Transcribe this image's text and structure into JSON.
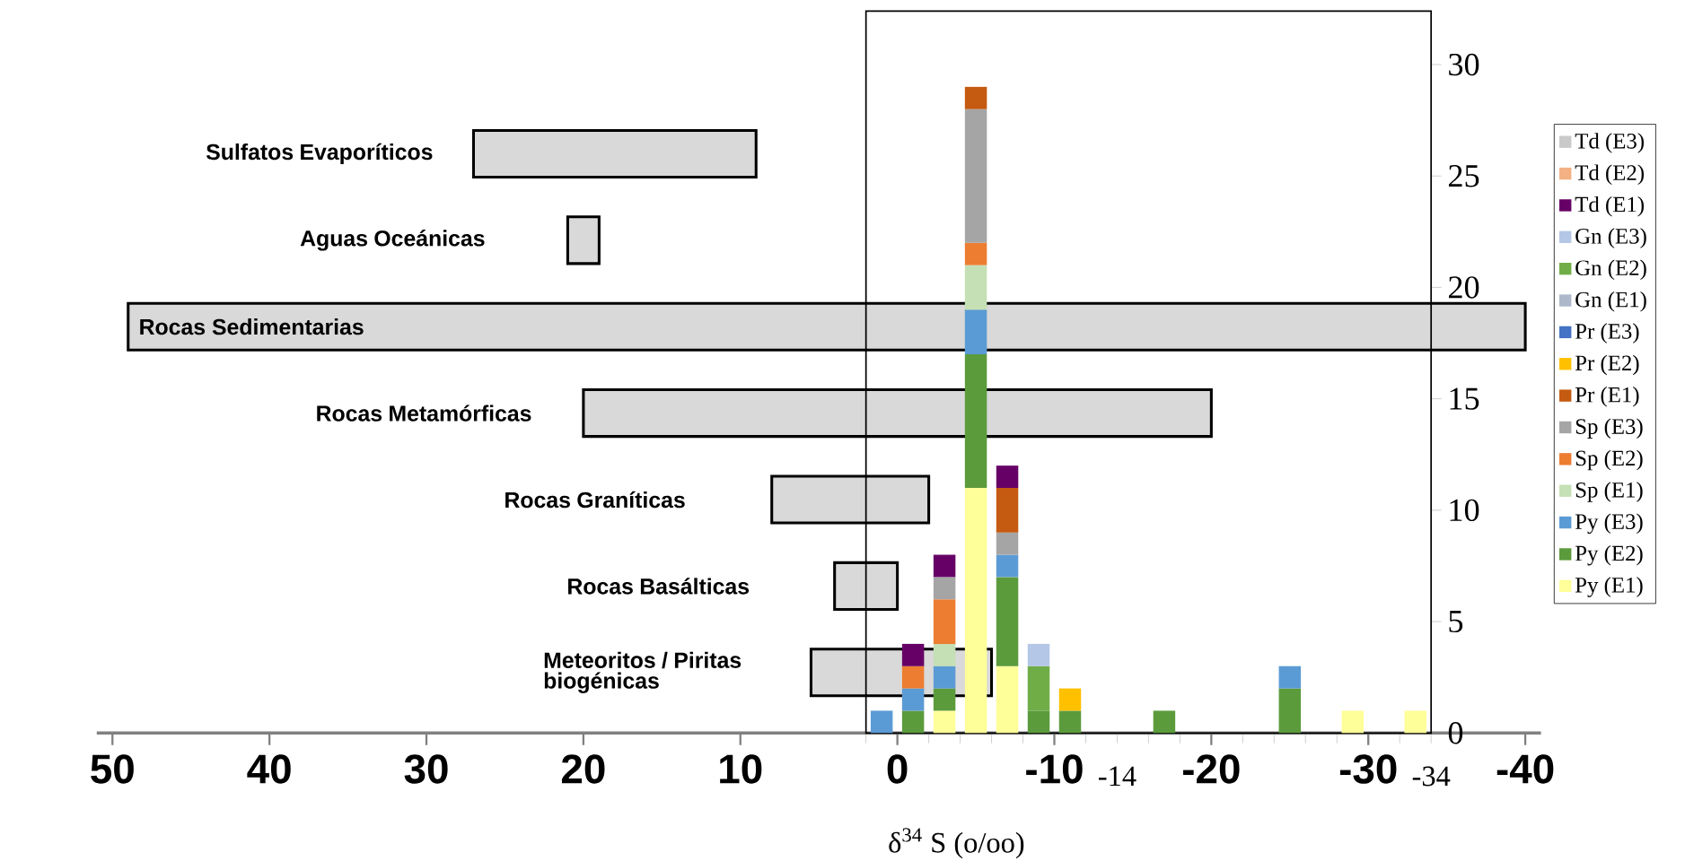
{
  "chart_data": [
    {
      "type": "bar",
      "orientation": "horizontal",
      "color": "#d9d9d9",
      "categories": [
        "Sulfatos Evaporíticos",
        "Aguas Oceánicas",
        "Rocas Sedimentarias",
        "Rocas Metamórficas",
        "Rocas Graníticas",
        "Rocas Basálticas",
        "Meteoritos / Piritas biogénicas"
      ],
      "base": [
        27,
        21,
        49,
        20,
        8,
        4,
        5.5
      ],
      "values": [
        -18,
        -2,
        -89,
        -40,
        -10,
        -4,
        -11.5
      ],
      "xlim": [
        51,
        -41
      ],
      "xticks": [
        50,
        40,
        30,
        20,
        10,
        0,
        -10,
        -20,
        -30,
        -40
      ]
    },
    {
      "type": "bar",
      "stacked": true,
      "xlabel": "δ$^{34}$ S (o/oo)",
      "legend": "right",
      "x": [
        1,
        -1,
        -3,
        -5,
        -7,
        -9,
        -11,
        -17,
        -25,
        -29,
        -33
      ],
      "series": [
        {
          "name": "Py (E1)",
          "color": "#ffff99",
          "values": [
            null,
            null,
            1,
            11,
            3,
            null,
            null,
            null,
            null,
            1,
            1
          ]
        },
        {
          "name": "Py (E2)",
          "color": "#5b9b3c",
          "values": [
            null,
            1,
            1,
            6,
            4,
            1,
            1,
            1,
            2,
            null,
            null
          ]
        },
        {
          "name": "Py (E3)",
          "color": "#5b9bd5",
          "values": [
            1,
            1,
            1,
            2,
            1,
            null,
            null,
            null,
            1,
            null,
            null
          ]
        },
        {
          "name": "Sp (E1)",
          "color": "#c5e0b4",
          "values": [
            null,
            null,
            1,
            2,
            null,
            null,
            null,
            null,
            null,
            null,
            null
          ]
        },
        {
          "name": "Sp (E2)",
          "color": "#ed7d31",
          "values": [
            null,
            1,
            2,
            1,
            null,
            null,
            null,
            null,
            null,
            null,
            null
          ]
        },
        {
          "name": "Sp (E3)",
          "color": "#a5a5a5",
          "values": [
            null,
            null,
            1,
            6,
            1,
            null,
            null,
            null,
            null,
            null,
            null
          ]
        },
        {
          "name": "Pr (E1)",
          "color": "#c55a11",
          "values": [
            null,
            null,
            null,
            1,
            2,
            null,
            null,
            null,
            null,
            null,
            null
          ]
        },
        {
          "name": "Pr (E2)",
          "color": "#ffc000",
          "values": [
            null,
            null,
            null,
            null,
            null,
            null,
            1,
            null,
            null,
            null,
            null
          ]
        },
        {
          "name": "Pr (E3)",
          "color": "#4472c4",
          "values": [
            null,
            null,
            null,
            null,
            null,
            null,
            null,
            null,
            null,
            null,
            null
          ]
        },
        {
          "name": "Gn (E1)",
          "color": "#adb9ca",
          "values": [
            null,
            null,
            null,
            null,
            null,
            null,
            null,
            null,
            null,
            null,
            null
          ]
        },
        {
          "name": "Gn (E2)",
          "color": "#70ad47",
          "values": [
            null,
            null,
            null,
            null,
            null,
            2,
            null,
            null,
            null,
            null,
            null
          ]
        },
        {
          "name": "Gn (E3)",
          "color": "#b4c7e7",
          "values": [
            null,
            null,
            null,
            null,
            null,
            1,
            null,
            null,
            null,
            null,
            null
          ]
        },
        {
          "name": "Td (E1)",
          "color": "#660066",
          "values": [
            null,
            1,
            1,
            null,
            1,
            null,
            null,
            null,
            null,
            null,
            null
          ]
        },
        {
          "name": "Td (E2)",
          "color": "#f4b183",
          "values": [
            null,
            null,
            null,
            null,
            null,
            null,
            null,
            null,
            null,
            null,
            null
          ]
        },
        {
          "name": "Td (E3)",
          "color": "#c9c9c9",
          "values": [
            null,
            null,
            null,
            null,
            null,
            null,
            null,
            null,
            null,
            null,
            null
          ]
        }
      ],
      "xlim": [
        2,
        -34
      ],
      "xticks": [
        {
          "value": 2,
          "label": null
        },
        {
          "value": 0,
          "label": null
        },
        {
          "value": -2,
          "label": null
        },
        {
          "value": -4,
          "label": null
        },
        {
          "value": -6,
          "label": null
        },
        {
          "value": -8,
          "label": null
        },
        {
          "value": -10,
          "label": null
        },
        {
          "value": -12,
          "label": null
        },
        -14,
        {
          "value": -16,
          "label": null
        },
        {
          "value": -18,
          "label": null
        },
        {
          "value": -20,
          "label": null
        },
        {
          "value": -22,
          "label": null
        },
        {
          "value": -24,
          "label": null
        },
        {
          "value": -26,
          "label": null
        },
        {
          "value": -28,
          "label": null
        },
        {
          "value": -30,
          "label": null
        },
        {
          "value": -32,
          "label": null
        },
        -34
      ],
      "ylim": [
        0,
        32.4
      ],
      "yticks": [
        0,
        5,
        10,
        15,
        20,
        25,
        30
      ]
    }
  ]
}
